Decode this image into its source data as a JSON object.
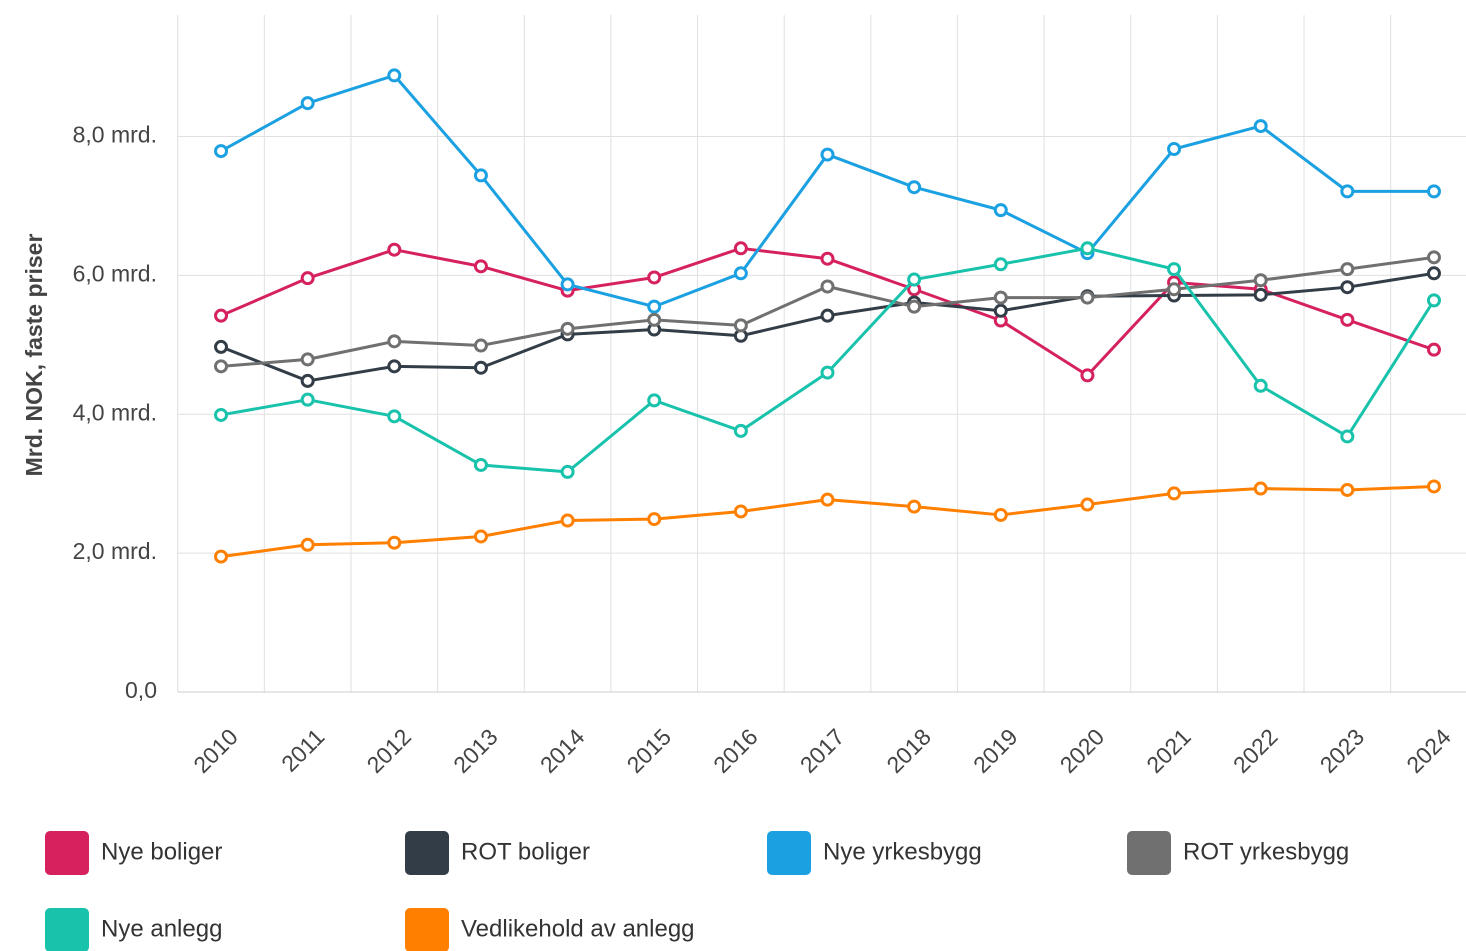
{
  "chart_data": {
    "type": "line",
    "y_label": "Mrd. NOK, faste priser",
    "categories": [
      "2010",
      "2011",
      "2012",
      "2013",
      "2014",
      "2015",
      "2016",
      "2017",
      "2018",
      "2019",
      "2020",
      "2021",
      "2022",
      "2023",
      "2024"
    ],
    "ylim": [
      0,
      9.75
    ],
    "yticks": [
      {
        "value": 0,
        "label": "0,0"
      },
      {
        "value": 2,
        "label": "2,0 mrd."
      },
      {
        "value": 4,
        "label": "4,0 mrd."
      },
      {
        "value": 6,
        "label": "6,0 mrd."
      },
      {
        "value": 8,
        "label": "8,0 mrd."
      }
    ],
    "grid": true,
    "series": [
      {
        "name": "Nye boliger",
        "color": "#d6215f",
        "values": [
          5.42,
          5.96,
          6.37,
          6.13,
          5.78,
          5.97,
          6.39,
          6.24,
          5.8,
          5.35,
          4.56,
          5.9,
          5.8,
          5.36,
          4.93
        ]
      },
      {
        "name": "ROT boliger",
        "color": "#333d47",
        "values": [
          4.97,
          4.48,
          4.69,
          4.67,
          5.15,
          5.22,
          5.13,
          5.42,
          5.61,
          5.49,
          5.7,
          5.71,
          5.72,
          5.83,
          6.03
        ]
      },
      {
        "name": "Nye yrkesbygg",
        "color": "#1ba1e2",
        "values": [
          7.79,
          8.48,
          8.88,
          7.44,
          5.87,
          5.55,
          6.03,
          7.74,
          7.27,
          6.94,
          6.32,
          7.82,
          8.15,
          7.21,
          7.21
        ]
      },
      {
        "name": "ROT yrkesbygg",
        "color": "#707070",
        "values": [
          4.69,
          4.79,
          5.05,
          4.99,
          5.23,
          5.36,
          5.28,
          5.84,
          5.55,
          5.68,
          5.68,
          5.8,
          5.93,
          6.09,
          6.26
        ]
      },
      {
        "name": "Nye anlegg",
        "color": "#18c2ab",
        "values": [
          3.99,
          4.21,
          3.97,
          3.27,
          3.17,
          4.2,
          3.76,
          4.6,
          5.94,
          6.16,
          6.39,
          6.09,
          4.41,
          3.68,
          5.64
        ]
      },
      {
        "name": "Vedlikehold av anlegg",
        "color": "#ff8000",
        "values": [
          1.95,
          2.12,
          2.15,
          2.24,
          2.47,
          2.49,
          2.6,
          2.77,
          2.67,
          2.55,
          2.7,
          2.86,
          2.93,
          2.91,
          2.96
        ]
      }
    ]
  }
}
